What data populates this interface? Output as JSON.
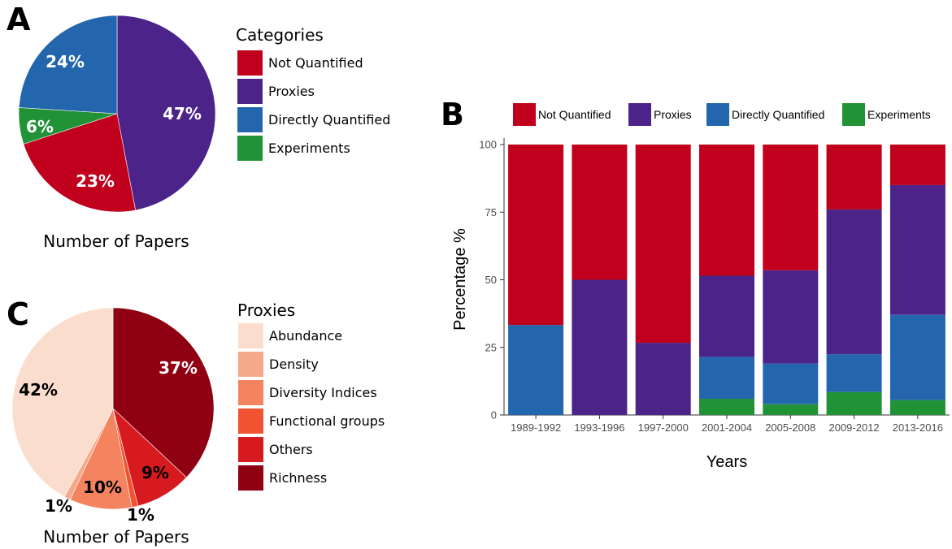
{
  "colors": {
    "not_quantified": "#c0001c",
    "proxies": "#4b2389",
    "directly_quantified": "#2466ad",
    "experiments": "#229236",
    "abundance": "#fbddce",
    "density": "#f6a98a",
    "diversity_indices": "#f4835f",
    "functional_groups": "#f15332",
    "others": "#d61a1f",
    "richness": "#8e0012"
  },
  "chart_data": [
    {
      "panel": "A",
      "type": "pie",
      "caption": "Number of Papers",
      "legend_title": "Categories",
      "slices": [
        {
          "name": "Proxies",
          "value": 47,
          "label": "47%",
          "color_key": "proxies",
          "label_color": "#ffffff"
        },
        {
          "name": "Not Quantified",
          "value": 23,
          "label": "23%",
          "color_key": "not_quantified",
          "label_color": "#ffffff"
        },
        {
          "name": "Experiments",
          "value": 6,
          "label": "6%",
          "color_key": "experiments",
          "label_color": "#ffffff"
        },
        {
          "name": "Directly Quantified",
          "value": 24,
          "label": "24%",
          "color_key": "directly_quantified",
          "label_color": "#ffffff"
        }
      ],
      "legend": [
        {
          "name": "Not Quantified",
          "color_key": "not_quantified"
        },
        {
          "name": "Proxies",
          "color_key": "proxies"
        },
        {
          "name": "Directly Quantified",
          "color_key": "directly_quantified"
        },
        {
          "name": "Experiments",
          "color_key": "experiments"
        }
      ]
    },
    {
      "panel": "B",
      "type": "bar",
      "stacked": true,
      "xlabel": "Years",
      "ylabel": "Percentage %",
      "ylim": [
        0,
        100
      ],
      "yticks": [
        0,
        25,
        50,
        75,
        100
      ],
      "legend_position": "top",
      "categories": [
        "1989-1992",
        "1993-1996",
        "1997-2000",
        "2001-2004",
        "2005-2008",
        "2009-2012",
        "2013-2016"
      ],
      "series": [
        {
          "name": "Experiments",
          "color_key": "experiments",
          "values": [
            0,
            0,
            0,
            6,
            4,
            8.5,
            5.5
          ]
        },
        {
          "name": "Directly Quantified",
          "color_key": "directly_quantified",
          "values": [
            33.3,
            0,
            0,
            15.5,
            15,
            14,
            31.5
          ]
        },
        {
          "name": "Proxies",
          "color_key": "proxies",
          "values": [
            0,
            50,
            26.7,
            30,
            34.5,
            53.5,
            48
          ]
        },
        {
          "name": "Not Quantified",
          "color_key": "not_quantified",
          "values": [
            66.7,
            50,
            73.3,
            48.5,
            46.5,
            24,
            15
          ]
        }
      ],
      "legend": [
        {
          "name": "Not Quantified",
          "color_key": "not_quantified"
        },
        {
          "name": "Proxies",
          "color_key": "proxies"
        },
        {
          "name": "Directly Quantified",
          "color_key": "directly_quantified"
        },
        {
          "name": "Experiments",
          "color_key": "experiments"
        }
      ]
    },
    {
      "panel": "C",
      "type": "pie",
      "caption": "Number of Papers",
      "legend_title": "Proxies",
      "slices": [
        {
          "name": "Richness",
          "value": 37,
          "label": "37%",
          "color_key": "richness",
          "label_color": "#ffffff"
        },
        {
          "name": "Others",
          "value": 9,
          "label": "9%",
          "color_key": "others",
          "label_color": "#000000"
        },
        {
          "name": "Functional groups",
          "value": 1,
          "label": "1%",
          "color_key": "functional_groups",
          "label_color": "#000000"
        },
        {
          "name": "Diversity Indices",
          "value": 10,
          "label": "10%",
          "color_key": "diversity_indices",
          "label_color": "#000000"
        },
        {
          "name": "Density",
          "value": 1,
          "label": "1%",
          "color_key": "density",
          "label_color": "#000000"
        },
        {
          "name": "Abundance",
          "value": 42,
          "label": "42%",
          "color_key": "abundance",
          "label_color": "#000000"
        }
      ],
      "legend": [
        {
          "name": "Abundance",
          "color_key": "abundance"
        },
        {
          "name": "Density",
          "color_key": "density"
        },
        {
          "name": "Diversity Indices",
          "color_key": "diversity_indices"
        },
        {
          "name": "Functional groups",
          "color_key": "functional_groups"
        },
        {
          "name": "Others",
          "color_key": "others"
        },
        {
          "name": "Richness",
          "color_key": "richness"
        }
      ]
    }
  ]
}
